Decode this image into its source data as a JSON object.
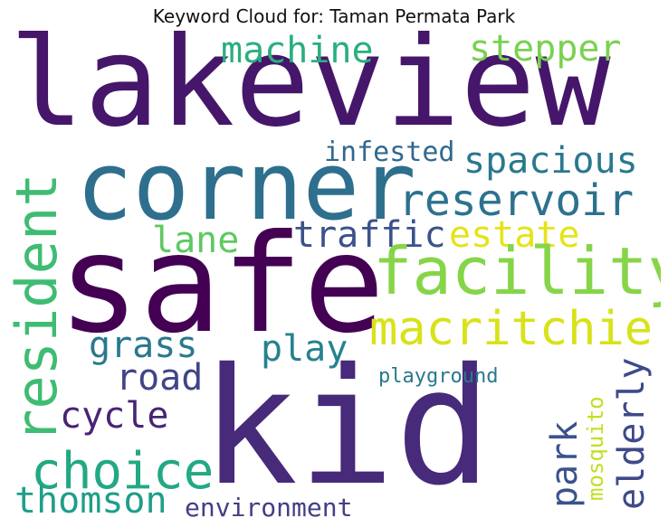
{
  "title": "Keyword Cloud for: Taman Permata Park",
  "words": [
    {
      "key": "lakeview",
      "text": "lakeview",
      "color": "#46166b"
    },
    {
      "key": "corner",
      "text": "corner",
      "color": "#2e6f8e"
    },
    {
      "key": "safe",
      "text": "safe",
      "color": "#440154"
    },
    {
      "key": "kid",
      "text": "kid",
      "color": "#472a7a"
    },
    {
      "key": "resident",
      "text": "resident",
      "color": "#3fbc73"
    },
    {
      "key": "machine",
      "text": "machine",
      "color": "#29af7f"
    },
    {
      "key": "stepper",
      "text": "stepper",
      "color": "#7ad151"
    },
    {
      "key": "spacious",
      "text": "spacious",
      "color": "#2a788e"
    },
    {
      "key": "reservoir",
      "text": "reservoir",
      "color": "#2c728e"
    },
    {
      "key": "infested",
      "text": "infested",
      "color": "#31688e"
    },
    {
      "key": "traffic",
      "text": "traffic",
      "color": "#3b528b"
    },
    {
      "key": "estate",
      "text": "estate",
      "color": "#e5e419"
    },
    {
      "key": "lane",
      "text": "lane",
      "color": "#5ec962"
    },
    {
      "key": "facility",
      "text": "facility",
      "color": "#86d549"
    },
    {
      "key": "macritchie",
      "text": "macritchie",
      "color": "#d8e219"
    },
    {
      "key": "grass",
      "text": "grass",
      "color": "#2a788e"
    },
    {
      "key": "play",
      "text": "play",
      "color": "#26828e"
    },
    {
      "key": "road",
      "text": "road",
      "color": "#414487"
    },
    {
      "key": "playground",
      "text": "playground",
      "color": "#2a788e"
    },
    {
      "key": "elderly",
      "text": "elderly",
      "color": "#3e4a89"
    },
    {
      "key": "mosquito",
      "text": "mosquito",
      "color": "#c2df23"
    },
    {
      "key": "park",
      "text": "park",
      "color": "#3b528b"
    },
    {
      "key": "cycle",
      "text": "cycle",
      "color": "#482475"
    },
    {
      "key": "choice",
      "text": "choice",
      "color": "#22a884"
    },
    {
      "key": "thomson",
      "text": "thomson",
      "color": "#1f9e89"
    },
    {
      "key": "environment",
      "text": "environment",
      "color": "#433e85"
    }
  ]
}
